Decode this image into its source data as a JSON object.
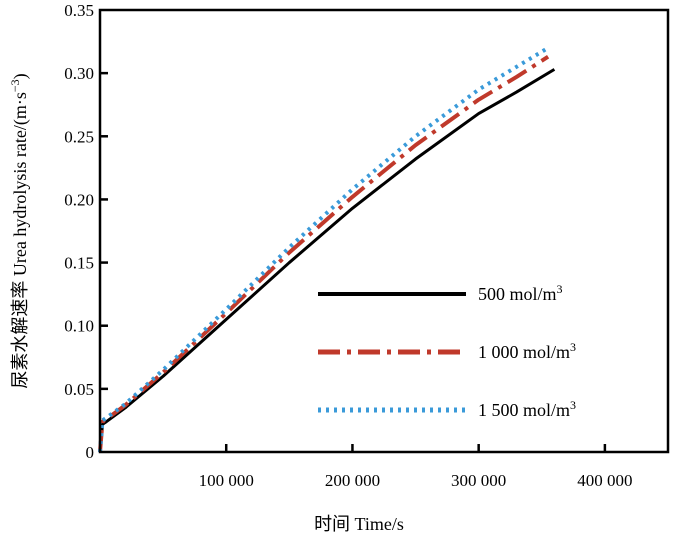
{
  "chart_data": {
    "type": "line",
    "title": "",
    "xlabel": "时间 Time/s",
    "ylabel": "尿素水解速率 Urea hydrolysis rate/(m·s",
    "ylabel_sup": "−3",
    "ylabel_close": ")",
    "xlim": [
      0,
      450000
    ],
    "ylim": [
      0,
      0.35
    ],
    "grid": false,
    "legend_position": "center-right",
    "x_ticks": [
      {
        "value": 100000,
        "label": "100 000"
      },
      {
        "value": 200000,
        "label": "200 000"
      },
      {
        "value": 300000,
        "label": "300 000"
      },
      {
        "value": 400000,
        "label": "400 000"
      }
    ],
    "y_ticks": [
      {
        "value": 0,
        "label": "0"
      },
      {
        "value": 0.05,
        "label": "0.05"
      },
      {
        "value": 0.1,
        "label": "0.10"
      },
      {
        "value": 0.15,
        "label": "0.15"
      },
      {
        "value": 0.2,
        "label": "0.20"
      },
      {
        "value": 0.25,
        "label": "0.25"
      },
      {
        "value": 0.3,
        "label": "0.30"
      },
      {
        "value": 0.35,
        "label": "0.35"
      }
    ],
    "series": [
      {
        "name": "500 mol/m",
        "name_sup": "3",
        "color": "#000000",
        "style": "solid",
        "x": [
          0,
          2000,
          5000,
          20000,
          50000,
          100000,
          150000,
          200000,
          250000,
          300000,
          330000,
          360000
        ],
        "y": [
          0,
          0.022,
          0.024,
          0.035,
          0.06,
          0.105,
          0.15,
          0.193,
          0.232,
          0.268,
          0.285,
          0.303
        ]
      },
      {
        "name": "1 000 mol/m",
        "name_sup": "3",
        "color": "#c0392b",
        "style": "dashdot",
        "x": [
          0,
          2000,
          5000,
          20000,
          50000,
          100000,
          150000,
          200000,
          250000,
          300000,
          330000,
          355000
        ],
        "y": [
          0,
          0.024,
          0.026,
          0.037,
          0.063,
          0.11,
          0.158,
          0.202,
          0.243,
          0.279,
          0.297,
          0.313
        ]
      },
      {
        "name": "1 500 mol/m",
        "name_sup": "3",
        "color": "#3a9ad9",
        "style": "dotted",
        "x": [
          0,
          2000,
          5000,
          20000,
          50000,
          100000,
          150000,
          200000,
          250000,
          300000,
          330000,
          355000
        ],
        "y": [
          0,
          0.025,
          0.027,
          0.038,
          0.065,
          0.113,
          0.162,
          0.208,
          0.25,
          0.287,
          0.305,
          0.32
        ]
      }
    ]
  }
}
